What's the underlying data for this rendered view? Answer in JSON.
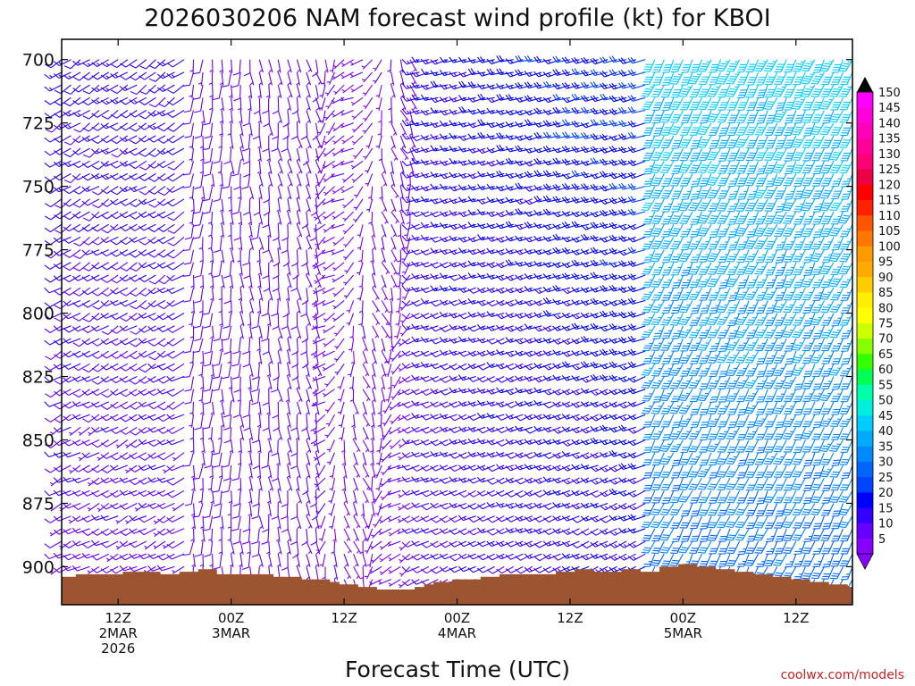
{
  "chart_data": {
    "type": "wind-barb-time-height",
    "title": "2026030206 NAM forecast wind profile (kt) for KBOI",
    "xlabel": "Forecast Time (UTC)",
    "credit": "coolwx.com/models",
    "y_axis": {
      "unit": "hPa",
      "range": [
        692,
        915
      ],
      "inverted": true,
      "ticks": [
        "700",
        "725",
        "750",
        "775",
        "800",
        "825",
        "850",
        "875",
        "900"
      ]
    },
    "x_axis": {
      "unit": "forecast hour",
      "range": [
        0,
        84
      ],
      "ticks": [
        {
          "hour": 6,
          "lines": [
            "12Z",
            "2MAR",
            "2026"
          ]
        },
        {
          "hour": 18,
          "lines": [
            "00Z",
            "3MAR"
          ]
        },
        {
          "hour": 30,
          "lines": [
            "12Z"
          ]
        },
        {
          "hour": 42,
          "lines": [
            "00Z",
            "4MAR"
          ]
        },
        {
          "hour": 54,
          "lines": [
            "12Z"
          ]
        },
        {
          "hour": 66,
          "lines": [
            "00Z",
            "5MAR"
          ]
        },
        {
          "hour": 78,
          "lines": [
            "12Z"
          ]
        }
      ]
    },
    "colorbar": {
      "unit": "kt",
      "levels": [
        "5",
        "10",
        "15",
        "20",
        "25",
        "30",
        "35",
        "40",
        "45",
        "50",
        "55",
        "60",
        "65",
        "70",
        "75",
        "80",
        "85",
        "90",
        "95",
        "100",
        "105",
        "110",
        "115",
        "120",
        "125",
        "130",
        "135",
        "140",
        "145",
        "150"
      ],
      "colors": [
        "#8800ff",
        "#6600ff",
        "#3300ff",
        "#0000ff",
        "#0044ff",
        "#0066ff",
        "#0088ff",
        "#00aaff",
        "#00ccff",
        "#00eedd",
        "#00ffaa",
        "#00ff55",
        "#33ff00",
        "#88ff00",
        "#ccff00",
        "#ffff00",
        "#ffee00",
        "#ffcc00",
        "#ffaa00",
        "#ff9900",
        "#ff7700",
        "#ff5500",
        "#ff2200",
        "#ff0000",
        "#ee0044",
        "#ff0077",
        "#ff0099",
        "#ff00bb",
        "#ff00dd",
        "#ff00ff"
      ]
    },
    "terrain_color": "#9c5530",
    "terrain_top_hPa": [
      [
        0,
        904
      ],
      [
        1,
        904
      ],
      [
        2,
        903
      ],
      [
        3,
        903
      ],
      [
        4,
        903
      ],
      [
        5,
        903
      ],
      [
        6,
        903
      ],
      [
        7,
        902
      ],
      [
        8,
        902
      ],
      [
        9,
        902
      ],
      [
        10,
        902
      ],
      [
        11,
        903
      ],
      [
        12,
        903
      ],
      [
        13,
        902
      ],
      [
        14,
        902
      ],
      [
        15,
        901
      ],
      [
        16,
        901
      ],
      [
        17,
        903
      ],
      [
        18,
        903
      ],
      [
        19,
        903
      ],
      [
        20,
        903
      ],
      [
        21,
        903
      ],
      [
        22,
        903
      ],
      [
        23,
        904
      ],
      [
        24,
        904
      ],
      [
        25,
        904
      ],
      [
        26,
        905
      ],
      [
        27,
        905
      ],
      [
        28,
        905
      ],
      [
        29,
        906
      ],
      [
        30,
        907
      ],
      [
        31,
        907
      ],
      [
        32,
        908
      ],
      [
        33,
        908
      ],
      [
        34,
        909
      ],
      [
        35,
        909
      ],
      [
        36,
        909
      ],
      [
        37,
        909
      ],
      [
        38,
        908
      ],
      [
        39,
        907
      ],
      [
        40,
        906
      ],
      [
        41,
        906
      ],
      [
        42,
        905
      ],
      [
        43,
        905
      ],
      [
        44,
        905
      ],
      [
        45,
        904
      ],
      [
        46,
        904
      ],
      [
        47,
        903
      ],
      [
        48,
        903
      ],
      [
        49,
        903
      ],
      [
        50,
        903
      ],
      [
        51,
        903
      ],
      [
        52,
        903
      ],
      [
        53,
        902
      ],
      [
        54,
        902
      ],
      [
        55,
        901
      ],
      [
        56,
        901
      ],
      [
        57,
        902
      ],
      [
        58,
        902
      ],
      [
        59,
        902
      ],
      [
        60,
        901
      ],
      [
        61,
        901
      ],
      [
        62,
        902
      ],
      [
        63,
        902
      ],
      [
        64,
        900
      ],
      [
        65,
        900
      ],
      [
        66,
        899
      ],
      [
        67,
        899
      ],
      [
        68,
        900
      ],
      [
        69,
        900
      ],
      [
        70,
        901
      ],
      [
        71,
        901
      ],
      [
        72,
        902
      ],
      [
        73,
        902
      ],
      [
        74,
        903
      ],
      [
        75,
        903
      ],
      [
        76,
        904
      ],
      [
        77,
        904
      ],
      [
        78,
        905
      ],
      [
        79,
        905
      ],
      [
        80,
        906
      ],
      [
        81,
        906
      ],
      [
        82,
        907
      ],
      [
        83,
        907
      ],
      [
        84,
        908
      ]
    ],
    "barbs": {
      "times_hr": [
        0,
        84,
        1
      ],
      "levels_hPa": [
        700,
        905,
        5
      ],
      "color_key": "speed_kt",
      "regimes": [
        {
          "hours": "0-13",
          "direction": "southwest",
          "speed_kt": [
            7,
            14
          ]
        },
        {
          "hours": "14-27",
          "direction": "south to southeast",
          "speed_kt": [
            4,
            9
          ]
        },
        {
          "hours": "28-37",
          "direction": "variable, turning through south",
          "speed_kt": [
            3,
            8
          ]
        },
        {
          "hours": "38-62",
          "direction": "southwest to west",
          "speed_kt": [
            10,
            25
          ]
        },
        {
          "hours": "63-84",
          "direction": "south-southwest",
          "speed_kt": [
            25,
            45
          ]
        }
      ]
    }
  }
}
